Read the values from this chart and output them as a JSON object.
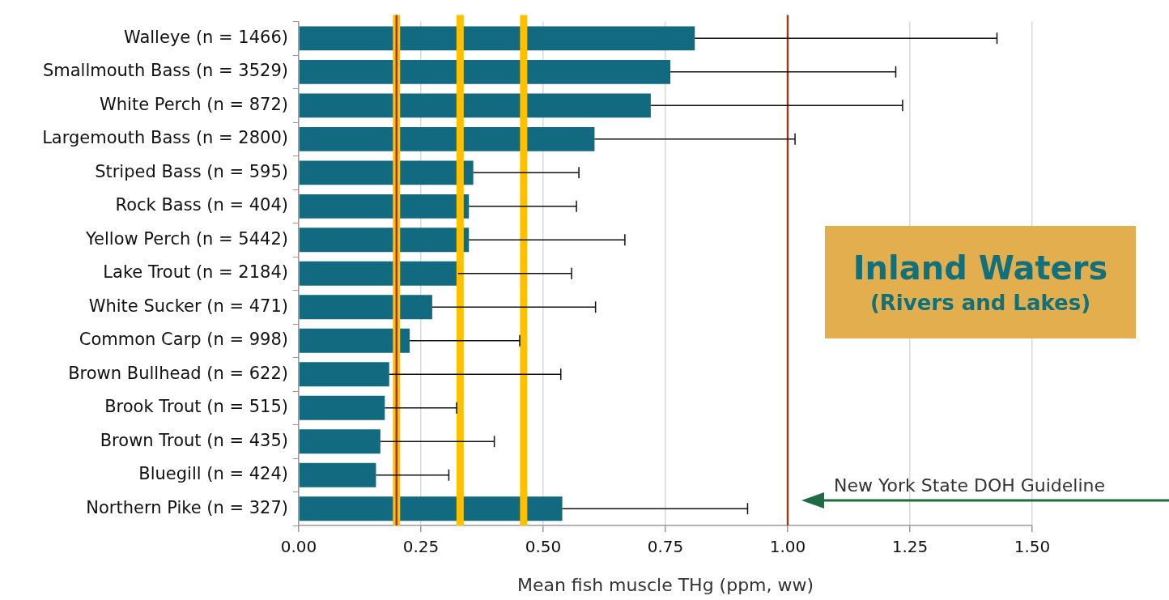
{
  "chart_data": {
    "type": "bar",
    "orientation": "horizontal",
    "title": "Inland Waters",
    "subtitle": "(Rivers and Lakes)",
    "xlabel": "Mean fish muscle THg (ppm, ww)",
    "categories": [
      "Walleye (n = 1466)",
      "Smallmouth Bass (n = 3529)",
      "White Perch (n = 872)",
      "Largemouth Bass (n = 2800)",
      "Striped Bass (n = 595)",
      "Rock Bass (n = 404)",
      "Yellow Perch (n = 5442)",
      "Lake Trout (n = 2184)",
      "White Sucker (n = 471)",
      "Common Carp (n = 998)",
      "Brown Bullhead (n = 622)",
      "Brook Trout (n = 515)",
      "Brown Trout (n = 435)",
      "Bluegill (n = 424)",
      "Northern Pike (n = 327)"
    ],
    "values": [
      0.81,
      0.76,
      0.72,
      0.605,
      0.357,
      0.348,
      0.348,
      0.326,
      0.273,
      0.227,
      0.185,
      0.176,
      0.167,
      0.158,
      0.539
    ],
    "errors": [
      [
        0.81,
        1.428
      ],
      [
        0.76,
        1.221
      ],
      [
        0.72,
        1.235
      ],
      [
        0.605,
        1.015
      ],
      [
        0.357,
        0.573
      ],
      [
        0.348,
        0.568
      ],
      [
        0.348,
        0.667
      ],
      [
        0.326,
        0.558
      ],
      [
        0.273,
        0.607
      ],
      [
        0.227,
        0.452
      ],
      [
        0.185,
        0.536
      ],
      [
        0.176,
        0.323
      ],
      [
        0.167,
        0.4
      ],
      [
        0.158,
        0.307
      ],
      [
        0.539,
        0.918
      ]
    ],
    "color": "#116a80",
    "xlim": [
      0,
      1.5
    ],
    "xticks": [
      {
        "value": 0,
        "label": "0.00"
      },
      {
        "value": 0.25,
        "label": "0.25"
      },
      {
        "value": 0.5,
        "label": "0.50"
      },
      {
        "value": 0.75,
        "label": "0.75"
      },
      {
        "value": 1,
        "label": "1.00"
      },
      {
        "value": 1.25,
        "label": "1.25"
      },
      {
        "value": 1.5,
        "label": "1.50"
      }
    ],
    "grid": "x",
    "ref_lines": [
      {
        "axis": "x",
        "value": 0.2,
        "color": "#ffc000"
      },
      {
        "axis": "x",
        "value": 0.33,
        "color": "#ffc000"
      },
      {
        "axis": "x",
        "value": 0.46,
        "color": "#ffc000"
      },
      {
        "axis": "x",
        "value": 0.2,
        "color": "#a0391c"
      },
      {
        "axis": "x",
        "value": 1,
        "color": "#a0391c",
        "label": "New York State DOH Guideline"
      }
    ]
  }
}
